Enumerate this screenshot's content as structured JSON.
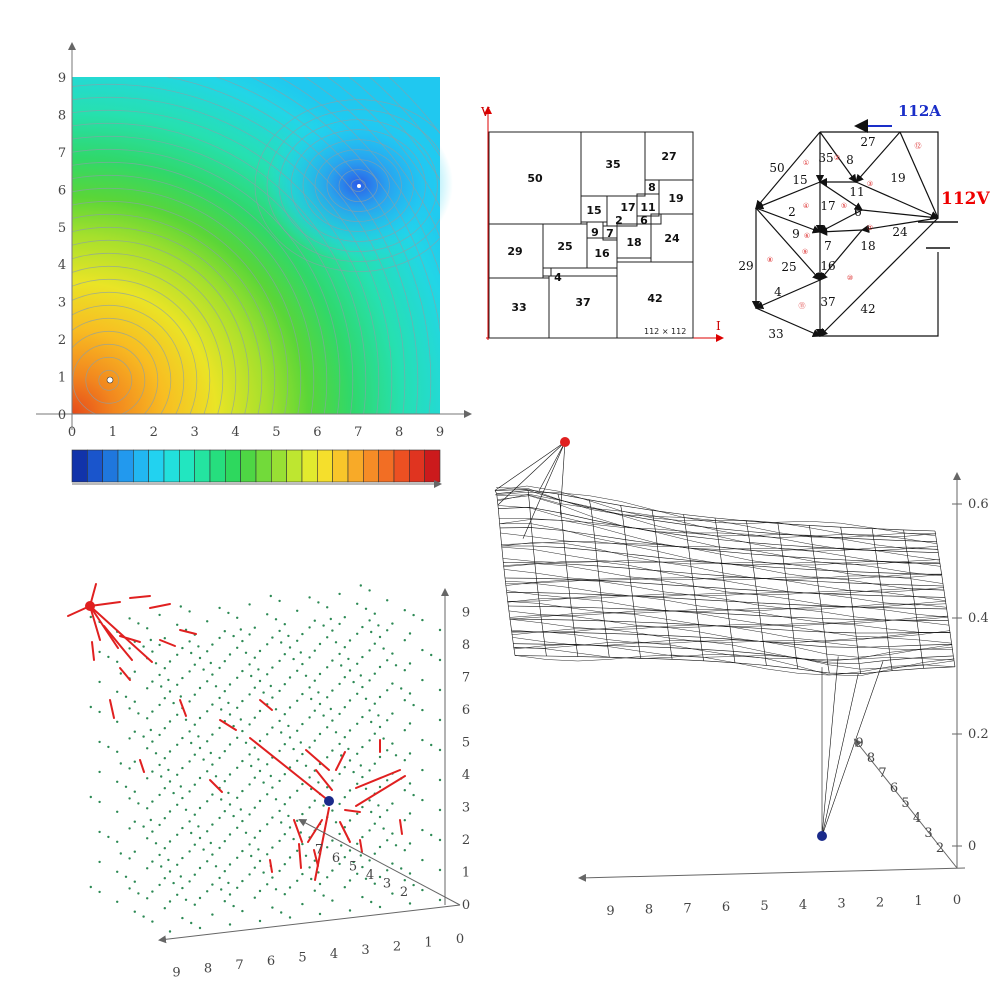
{
  "contour_panel": {
    "x_ticks": [
      "0",
      "1",
      "2",
      "3",
      "4",
      "5",
      "6",
      "7",
      "8",
      "9"
    ],
    "y_ticks": [
      "0",
      "1",
      "2",
      "3",
      "4",
      "5",
      "6",
      "7",
      "8",
      "9"
    ],
    "hot_spot": [
      0.9,
      0.9
    ],
    "cold_spot": [
      7.0,
      6.1
    ],
    "colorbar_colors": [
      "#1133aa",
      "#1a55cc",
      "#1f77dd",
      "#2299ee",
      "#22b7f2",
      "#22d2f0",
      "#22e0dc",
      "#22e6c0",
      "#24e4a0",
      "#26de7e",
      "#2ed85e",
      "#4ed644",
      "#72da3a",
      "#98e034",
      "#bee630",
      "#e2ea2e",
      "#f5df2c",
      "#f8c62a",
      "#f8aa28",
      "#f68c26",
      "#f26e24",
      "#ec5022",
      "#e03420",
      "#cc1a1c"
    ]
  },
  "squares_panel": {
    "axis_v": "V",
    "axis_i": "I",
    "size_note": "112 × 112",
    "tiles": [
      "50",
      "35",
      "27",
      "8",
      "19",
      "15",
      "17",
      "11",
      "2",
      "6",
      "9",
      "7",
      "29",
      "25",
      "16",
      "18",
      "24",
      "4",
      "33",
      "37",
      "42"
    ]
  },
  "network_panel": {
    "current_label": "112A",
    "voltage_label": "112V",
    "edge_labels": [
      "27",
      "35",
      "8",
      "50",
      "15",
      "19",
      "11",
      "2",
      "17",
      "6",
      "9",
      "7",
      "24",
      "18",
      "29",
      "25",
      "16",
      "4",
      "37",
      "42",
      "33"
    ],
    "node_numbers": [
      "①",
      "②",
      "③",
      "④",
      "⑤",
      "⑥",
      "⑦",
      "⑧",
      "⑨",
      "⑩",
      "⑪",
      "⑫"
    ]
  },
  "vector_panel": {
    "axis_ticks": [
      "0",
      "1",
      "2",
      "3",
      "4",
      "5",
      "6",
      "7",
      "8",
      "9"
    ],
    "vertical_ticks": [
      "0",
      "1",
      "2",
      "3",
      "4",
      "5",
      "6",
      "7",
      "8",
      "9"
    ]
  },
  "surface_panel": {
    "z_ticks": [
      "0",
      "0.2",
      "0.4",
      "0.6"
    ],
    "x_ticks": [
      "0",
      "1",
      "2",
      "3",
      "4",
      "5",
      "6",
      "7",
      "8",
      "9"
    ],
    "y_ticks": [
      "2",
      "3",
      "4",
      "5",
      "6",
      "7",
      "8",
      "9"
    ]
  }
}
